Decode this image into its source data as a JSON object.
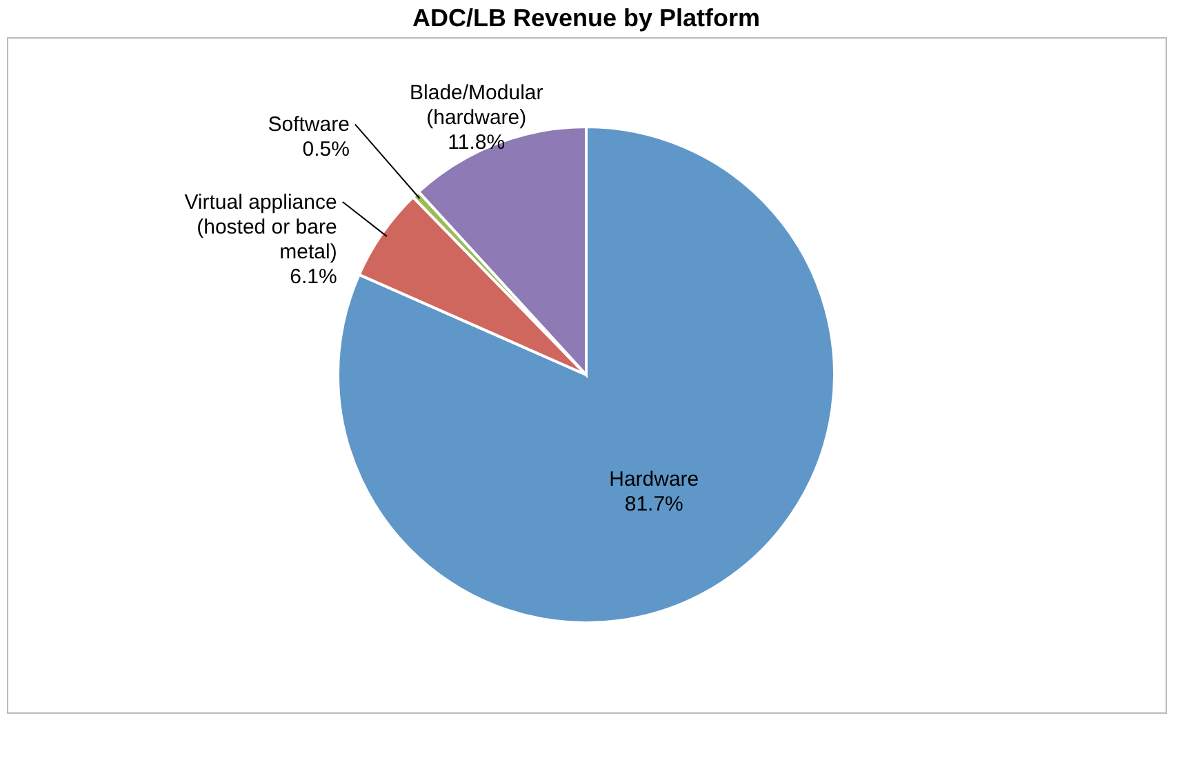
{
  "chart_data": {
    "type": "pie",
    "title": "ADC/LB Revenue by Platform",
    "categories": [
      "Hardware",
      "Virtual appliance (hosted or bare metal)",
      "Software",
      "Blade/Modular (hardware)"
    ],
    "values": [
      81.7,
      6.1,
      0.5,
      11.8
    ],
    "colors": [
      "#5f97c9",
      "#d0675e",
      "#9bbb59",
      "#8e7ab5"
    ],
    "value_labels": [
      "81.7%",
      "6.1%",
      "0.5%",
      "11.8%"
    ],
    "data_labels": true,
    "legend": false
  }
}
